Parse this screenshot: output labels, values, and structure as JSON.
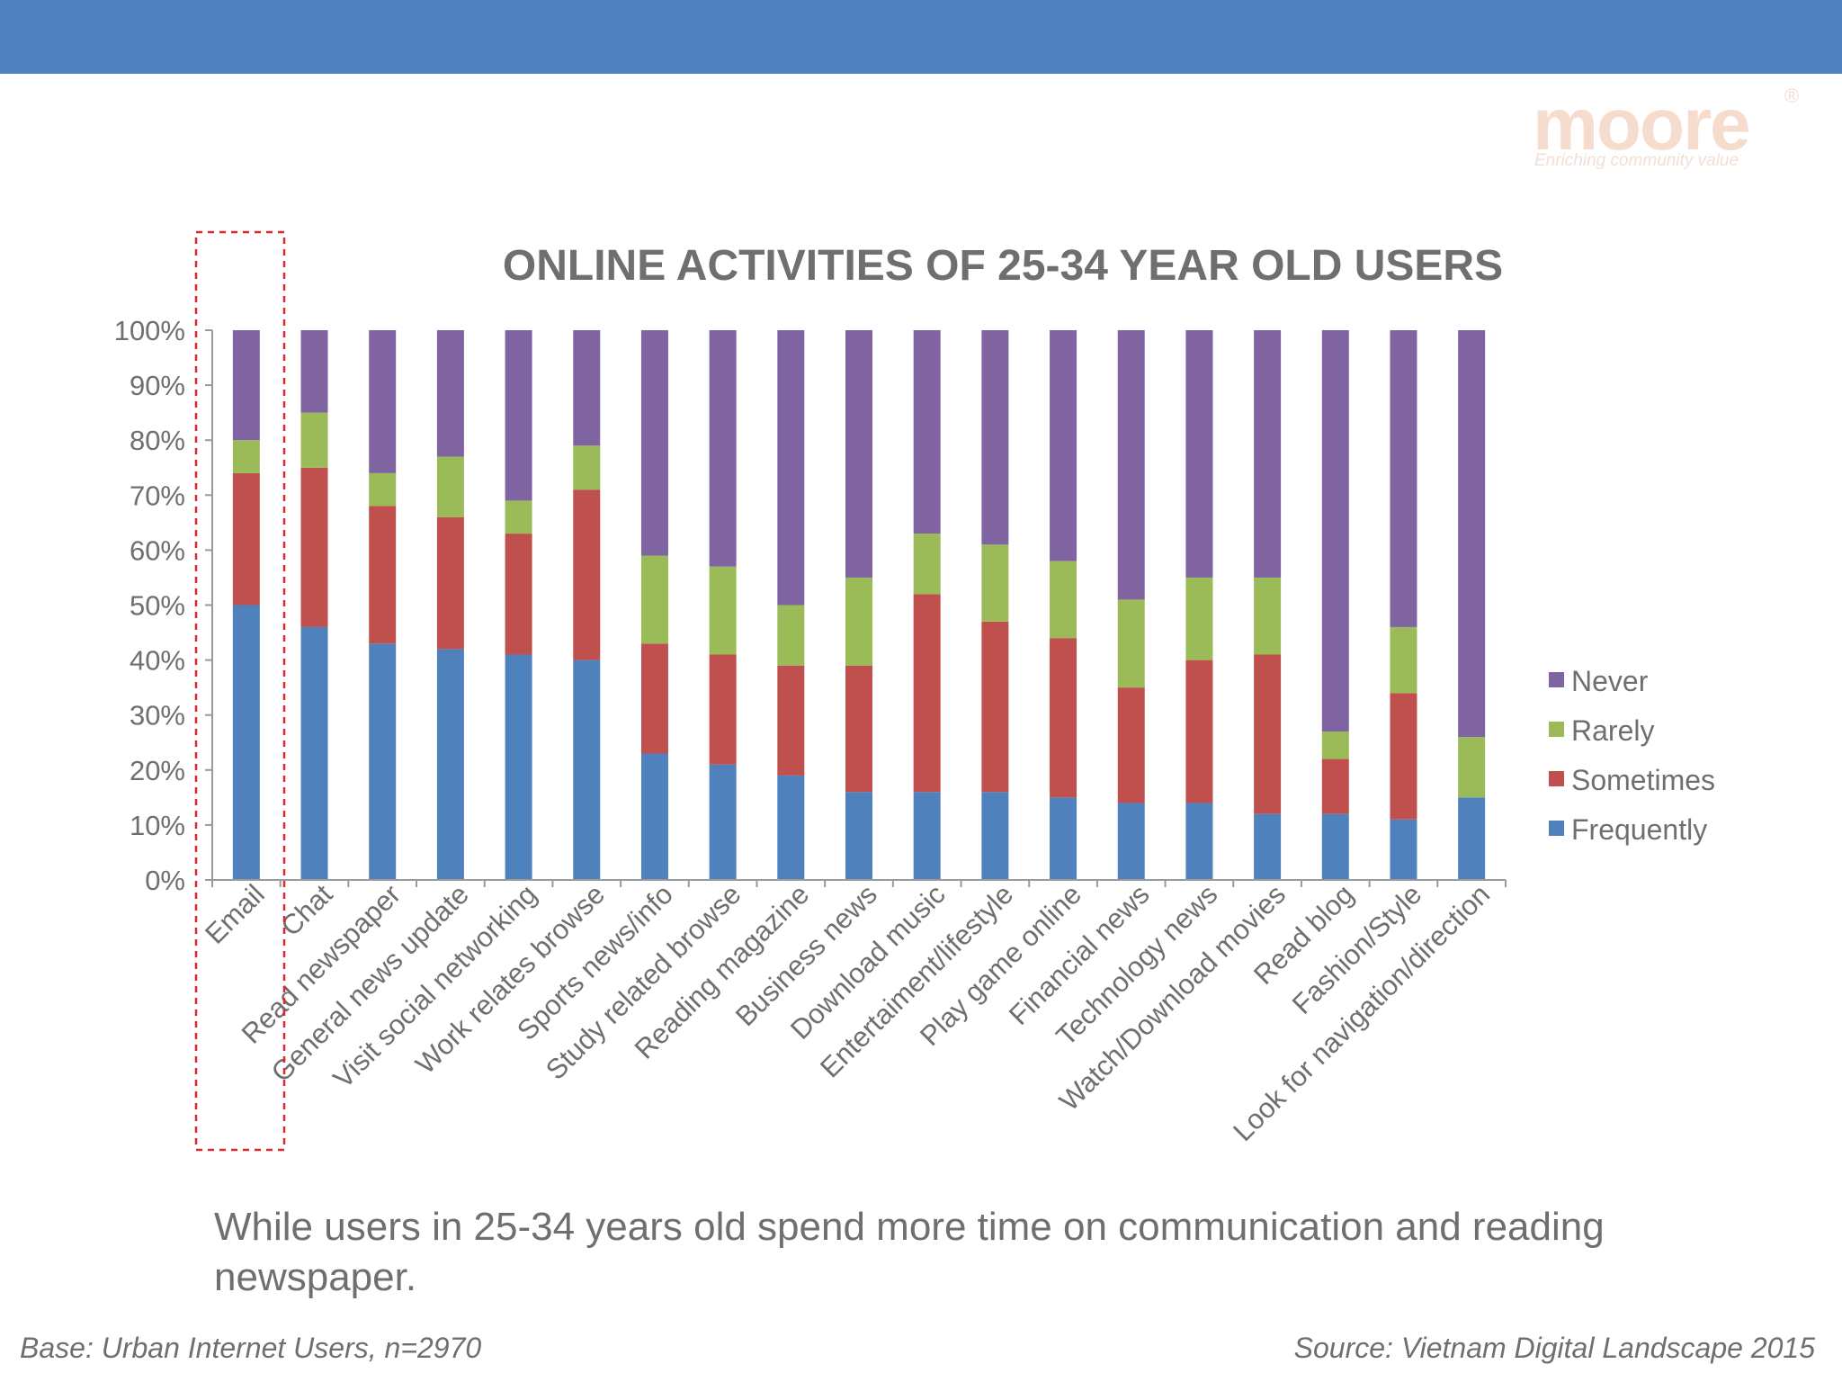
{
  "logo": {
    "word": "moore",
    "mark": "®",
    "tagline": "Enriching community value"
  },
  "caption": "While users in 25-34 years old spend more time on communication and reading newspaper.",
  "footnotes": {
    "base": "Base: Urban Internet Users, n=2970",
    "source": "Source: Vietnam Digital Landscape 2015"
  },
  "colors": {
    "band": "#4f81c1",
    "frequently": "#4f81bd",
    "sometimes": "#c0504d",
    "rarely": "#9bbb59",
    "never": "#8064a2",
    "highlight_box": "#e0262b",
    "text": "#6f6f6f"
  },
  "chart_data": {
    "type": "bar",
    "stacked": true,
    "title": "ONLINE ACTIVITIES OF 25-34 YEAR OLD USERS",
    "xlabel": "",
    "ylabel": "",
    "ylim": [
      0,
      100
    ],
    "ytick_labels": [
      "0%",
      "10%",
      "20%",
      "30%",
      "40%",
      "50%",
      "60%",
      "70%",
      "80%",
      "90%",
      "100%"
    ],
    "grid": false,
    "legend_position": "right",
    "highlighted_category": "Email",
    "categories": [
      "Email",
      "Chat",
      "Read newspaper",
      "General news update",
      "Visit social networking",
      "Work relates browse",
      "Sports news/info",
      "Study related browse",
      "Reading magazine",
      "Business news",
      "Download music",
      "Entertaiment/lifestyle",
      "Play game online",
      "Financial news",
      "Technology news",
      "Watch/Download movies",
      "Read blog",
      "Fashion/Style",
      "Look for navigation/direction"
    ],
    "series": [
      {
        "name": "Frequently",
        "values": [
          50,
          46,
          43,
          42,
          41,
          40,
          23,
          21,
          19,
          16,
          16,
          16,
          15,
          14,
          14,
          12,
          12,
          11,
          15
        ]
      },
      {
        "name": "Sometimes",
        "values": [
          24,
          29,
          25,
          24,
          22,
          31,
          20,
          20,
          20,
          23,
          36,
          31,
          29,
          21,
          26,
          29,
          10,
          23,
          0
        ]
      },
      {
        "name": "Rarely",
        "values": [
          6,
          10,
          6,
          11,
          6,
          8,
          16,
          16,
          11,
          16,
          11,
          14,
          14,
          16,
          15,
          14,
          5,
          12,
          11
        ]
      },
      {
        "name": "Never",
        "values": [
          20,
          15,
          26,
          23,
          31,
          21,
          41,
          43,
          50,
          45,
          37,
          39,
          42,
          49,
          45,
          45,
          73,
          54,
          74
        ]
      }
    ]
  }
}
